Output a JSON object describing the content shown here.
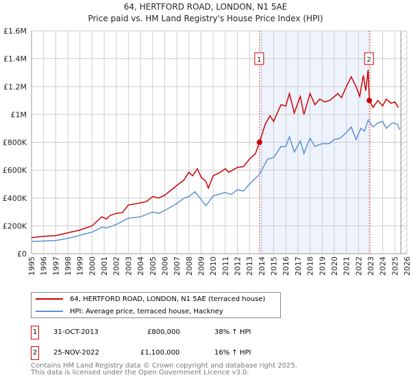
{
  "chart_data": {
    "type": "line",
    "title": "64, HERTFORD ROAD, LONDON, N1 5AE",
    "subtitle": "Price paid vs. HM Land Registry's House Price Index (HPI)",
    "xlim": [
      1995,
      2026
    ],
    "ylim": [
      0,
      1600000
    ],
    "x_ticks": [
      "1995",
      "1996",
      "1997",
      "1998",
      "1999",
      "2000",
      "2001",
      "2002",
      "2003",
      "2004",
      "2005",
      "2006",
      "2007",
      "2008",
      "2009",
      "2010",
      "2011",
      "2012",
      "2013",
      "2014",
      "2015",
      "2016",
      "2017",
      "2018",
      "2019",
      "2020",
      "2021",
      "2022",
      "2023",
      "2024",
      "2025",
      "2026"
    ],
    "y_ticks": [
      {
        "v": 0,
        "label": "£0"
      },
      {
        "v": 200000,
        "label": "£200K"
      },
      {
        "v": 400000,
        "label": "£400K"
      },
      {
        "v": 600000,
        "label": "£600K"
      },
      {
        "v": 800000,
        "label": "£800K"
      },
      {
        "v": 1000000,
        "label": "£1M"
      },
      {
        "v": 1200000,
        "label": "£1.2M"
      },
      {
        "v": 1400000,
        "label": "£1.4M"
      },
      {
        "v": 1600000,
        "label": "£1.6M"
      }
    ],
    "grid": true,
    "shaded_range": [
      2013.83,
      2022.9
    ],
    "future_hatch_from": 2025.5,
    "series": [
      {
        "name": "64, HERTFORD ROAD, LONDON, N1 5AE (terraced house)",
        "color": "#cc0000",
        "points": [
          [
            1995,
            115000
          ],
          [
            1996,
            125000
          ],
          [
            1997,
            130000
          ],
          [
            1998,
            150000
          ],
          [
            1999,
            170000
          ],
          [
            2000,
            200000
          ],
          [
            2000.8,
            265000
          ],
          [
            2001.2,
            250000
          ],
          [
            2001.5,
            275000
          ],
          [
            2002,
            290000
          ],
          [
            2002.5,
            295000
          ],
          [
            2003,
            350000
          ],
          [
            2004,
            365000
          ],
          [
            2004.5,
            375000
          ],
          [
            2005,
            410000
          ],
          [
            2005.5,
            400000
          ],
          [
            2006,
            420000
          ],
          [
            2007,
            490000
          ],
          [
            2007.6,
            530000
          ],
          [
            2008,
            585000
          ],
          [
            2008.3,
            560000
          ],
          [
            2008.7,
            610000
          ],
          [
            2009,
            550000
          ],
          [
            2009.4,
            520000
          ],
          [
            2009.6,
            470000
          ],
          [
            2010,
            560000
          ],
          [
            2010.5,
            580000
          ],
          [
            2011,
            610000
          ],
          [
            2011.3,
            585000
          ],
          [
            2012,
            620000
          ],
          [
            2012.5,
            625000
          ],
          [
            2013,
            680000
          ],
          [
            2013.5,
            720000
          ],
          [
            2013.83,
            800000
          ],
          [
            2014.3,
            930000
          ],
          [
            2014.7,
            990000
          ],
          [
            2015,
            950000
          ],
          [
            2015.6,
            1070000
          ],
          [
            2016,
            1060000
          ],
          [
            2016.3,
            1150000
          ],
          [
            2016.7,
            1010000
          ],
          [
            2017.2,
            1130000
          ],
          [
            2017.5,
            1000000
          ],
          [
            2018,
            1150000
          ],
          [
            2018.4,
            1070000
          ],
          [
            2018.8,
            1110000
          ],
          [
            2019.2,
            1090000
          ],
          [
            2019.6,
            1100000
          ],
          [
            2019.9,
            1120000
          ],
          [
            2020.3,
            1150000
          ],
          [
            2020.6,
            1120000
          ],
          [
            2021,
            1200000
          ],
          [
            2021.4,
            1270000
          ],
          [
            2021.8,
            1200000
          ],
          [
            2022.1,
            1130000
          ],
          [
            2022.4,
            1280000
          ],
          [
            2022.6,
            1170000
          ],
          [
            2022.8,
            1320000
          ],
          [
            2022.9,
            1100000
          ],
          [
            2023.2,
            1050000
          ],
          [
            2023.6,
            1100000
          ],
          [
            2024,
            1060000
          ],
          [
            2024.3,
            1110000
          ],
          [
            2024.7,
            1080000
          ],
          [
            2025,
            1090000
          ],
          [
            2025.3,
            1050000
          ]
        ]
      },
      {
        "name": "HPI: Average price, terraced house, Hackney",
        "color": "#5b8fd4",
        "points": [
          [
            1995,
            88000
          ],
          [
            1997,
            95000
          ],
          [
            1998,
            110000
          ],
          [
            2000,
            155000
          ],
          [
            2000.8,
            190000
          ],
          [
            2001.2,
            185000
          ],
          [
            2002,
            210000
          ],
          [
            2003,
            255000
          ],
          [
            2004,
            265000
          ],
          [
            2005,
            300000
          ],
          [
            2005.5,
            290000
          ],
          [
            2006,
            310000
          ],
          [
            2007,
            360000
          ],
          [
            2007.6,
            400000
          ],
          [
            2008,
            410000
          ],
          [
            2008.5,
            445000
          ],
          [
            2009,
            390000
          ],
          [
            2009.4,
            345000
          ],
          [
            2010,
            415000
          ],
          [
            2011,
            440000
          ],
          [
            2011.5,
            425000
          ],
          [
            2012,
            460000
          ],
          [
            2012.5,
            450000
          ],
          [
            2013,
            500000
          ],
          [
            2013.83,
            570000
          ],
          [
            2014.5,
            680000
          ],
          [
            2015,
            690000
          ],
          [
            2015.6,
            770000
          ],
          [
            2016,
            770000
          ],
          [
            2016.3,
            840000
          ],
          [
            2016.7,
            730000
          ],
          [
            2017.2,
            810000
          ],
          [
            2017.5,
            720000
          ],
          [
            2018,
            830000
          ],
          [
            2018.4,
            770000
          ],
          [
            2019,
            790000
          ],
          [
            2019.6,
            790000
          ],
          [
            2020,
            820000
          ],
          [
            2020.5,
            830000
          ],
          [
            2021,
            870000
          ],
          [
            2021.4,
            910000
          ],
          [
            2021.8,
            820000
          ],
          [
            2022.2,
            900000
          ],
          [
            2022.5,
            880000
          ],
          [
            2022.8,
            960000
          ],
          [
            2023.2,
            910000
          ],
          [
            2023.6,
            940000
          ],
          [
            2024,
            950000
          ],
          [
            2024.3,
            900000
          ],
          [
            2024.8,
            940000
          ],
          [
            2025.2,
            930000
          ],
          [
            2025.4,
            890000
          ]
        ]
      }
    ],
    "annotations": [
      {
        "label": "1",
        "x": 2013.83,
        "y": 800000
      },
      {
        "label": "2",
        "x": 2022.9,
        "y": 1100000
      }
    ]
  },
  "legend": [
    {
      "label": "64, HERTFORD ROAD, LONDON, N1 5AE (terraced house)",
      "color": "#cc0000"
    },
    {
      "label": "HPI: Average price, terraced house, Hackney",
      "color": "#5b8fd4"
    }
  ],
  "transactions": [
    {
      "num": "1",
      "date": "31-OCT-2013",
      "price": "£800,000",
      "hpi": "38% ↑ HPI"
    },
    {
      "num": "2",
      "date": "25-NOV-2022",
      "price": "£1,100,000",
      "hpi": "16% ↑ HPI"
    }
  ],
  "footer": [
    "Contains HM Land Registry data © Crown copyright and database right 2025.",
    "This data is licensed under the Open Government Licence v3.0."
  ]
}
